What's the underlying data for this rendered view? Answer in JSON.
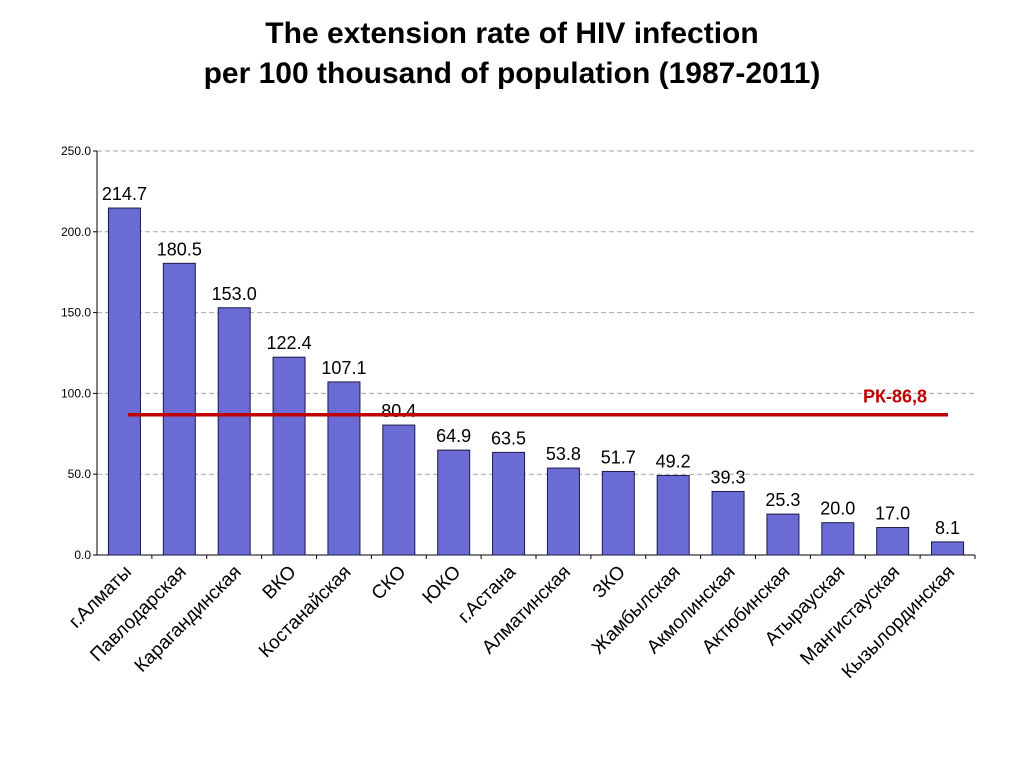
{
  "chart_data": {
    "type": "bar",
    "title": "The extension rate of HIV infection",
    "subtitle": "per 100 thousand of population (1987-2011)",
    "categories": [
      "г.Алматы",
      "Павлодарская",
      "Карагандинская",
      "ВКО",
      "Костанайская",
      "СКО",
      "ЮКО",
      "г.Астана",
      "Алматинская",
      "ЗКО",
      "Жамбылская",
      "Акмолинская",
      "Актюбинская",
      "Атырауская",
      "Мангистауская",
      "Кызылординская"
    ],
    "series": [
      {
        "values": [
          214.7,
          180.5,
          153.0,
          122.4,
          107.1,
          80.4,
          64.9,
          63.5,
          53.8,
          51.7,
          49.2,
          39.3,
          25.3,
          20.0,
          17.0,
          8.1
        ]
      }
    ],
    "data_labels": [
      "214.7",
      "180.5",
      "153.0",
      "122.4",
      "107.1",
      "80.4",
      "64.9",
      "63.5",
      "53.8",
      "51.7",
      "49.2",
      "39.3",
      "25.3",
      "20.0",
      "17.0",
      "8.1"
    ],
    "yticks": [
      "0.0",
      "50.0",
      "100.0",
      "150.0",
      "200.0",
      "250.0"
    ],
    "ylim": [
      0,
      250
    ],
    "grid": true,
    "xlabel": "",
    "ylabel": "",
    "reference_line": {
      "value": 86.8,
      "label": "РК-86,8",
      "color": "#c00000"
    },
    "bar_color": "#6b6bd6",
    "bar_edge_color": "#1a1a4a"
  }
}
